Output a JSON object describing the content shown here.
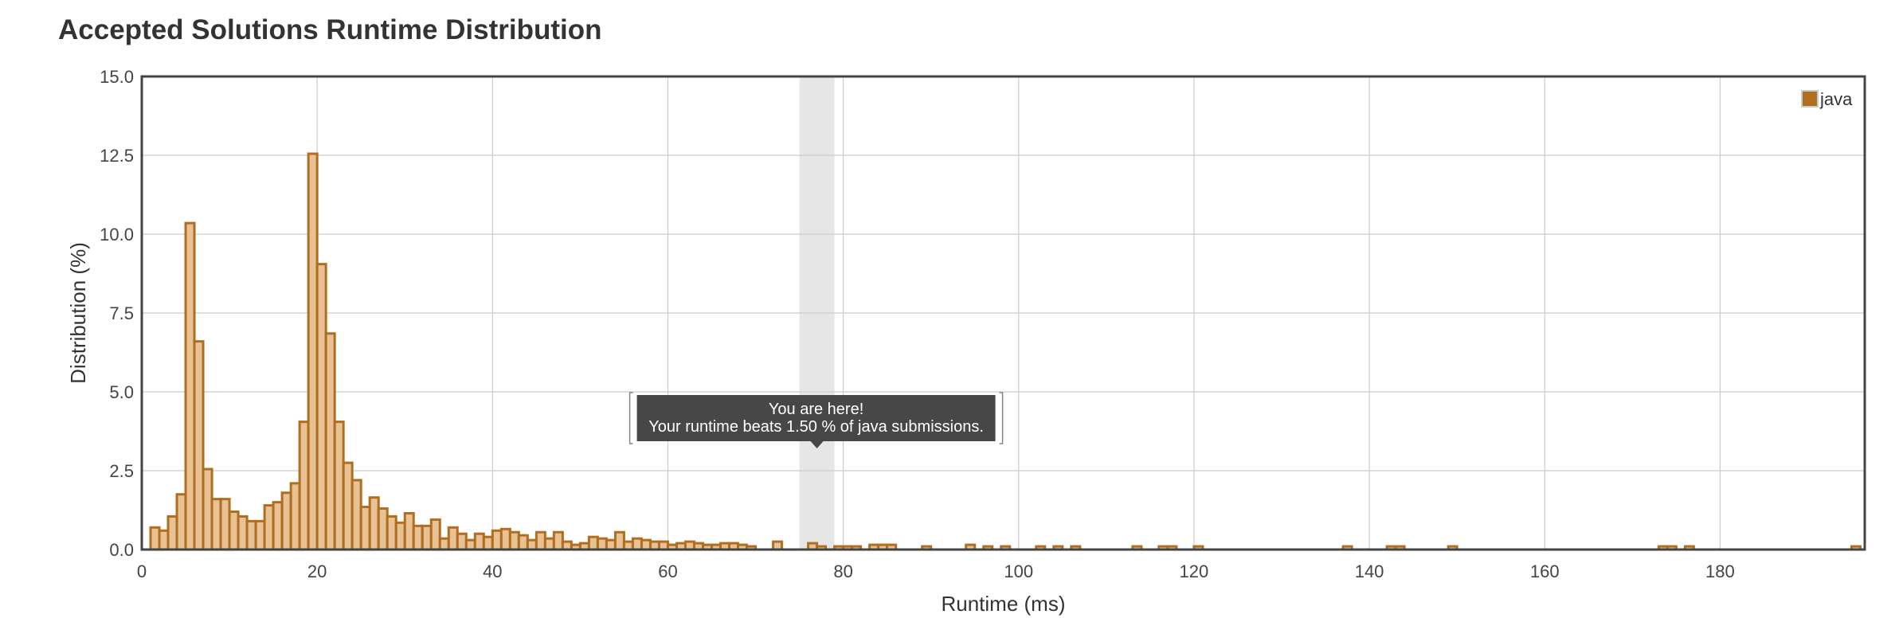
{
  "page": {
    "title": "Accepted Solutions Runtime Distribution"
  },
  "tooltip": {
    "line1": "You are here!",
    "line2": "Your runtime beats 1.50 % of java submissions."
  },
  "colors": {
    "bar_fill": "#e8c295",
    "bar_stroke": "#b06e1e",
    "legend_swatch": "#b06e1e",
    "grid": "#cccccc",
    "frame": "#444444",
    "highlight_band": "#e6e6e6",
    "tooltip_bg": "#474747"
  },
  "chart_data": {
    "type": "bar",
    "title": "Accepted Solutions Runtime Distribution",
    "xlabel": "Runtime (ms)",
    "ylabel": "Distribution (%)",
    "xlim": [
      0,
      196.5
    ],
    "ylim": [
      0,
      15
    ],
    "x_ticks": [
      0,
      20,
      40,
      60,
      80,
      100,
      120,
      140,
      160,
      180
    ],
    "x_tick_labels": [
      "0",
      "20",
      "40",
      "60",
      "80",
      "100",
      "120",
      "140",
      "160",
      "180"
    ],
    "y_ticks": [
      0,
      2.5,
      5,
      7.5,
      10,
      12.5,
      15
    ],
    "y_tick_labels": [
      "0.0",
      "2.5",
      "5.0",
      "7.5",
      "10.0",
      "12.5",
      "15.0"
    ],
    "grid": true,
    "legend_position": "top-right",
    "bin_width_ms": 1,
    "highlight_range_ms": [
      75,
      79
    ],
    "tooltip_anchor_ms": 77,
    "series": [
      {
        "name": "java",
        "x": [
          1,
          2,
          3,
          4,
          5,
          6,
          7,
          8,
          9,
          10,
          11,
          12,
          13,
          14,
          15,
          16,
          17,
          18,
          19,
          20,
          21,
          22,
          23,
          24,
          25,
          26,
          27,
          28,
          29,
          30,
          31,
          32,
          33,
          34,
          35,
          36,
          37,
          38,
          39,
          40,
          41,
          42,
          43,
          44,
          45,
          46,
          47,
          48,
          49,
          50,
          51,
          52,
          53,
          54,
          55,
          56,
          57,
          58,
          59,
          60,
          61,
          62,
          63,
          64,
          65,
          66,
          67,
          68,
          69,
          72,
          76,
          77,
          79,
          80,
          81,
          83,
          84,
          85,
          89,
          94,
          96,
          98,
          102,
          104,
          106,
          113,
          116,
          117,
          120,
          137,
          142,
          143,
          149,
          173,
          174,
          176,
          195
        ],
        "values": [
          0.7,
          0.6,
          1.05,
          1.75,
          10.35,
          6.6,
          2.55,
          1.6,
          1.6,
          1.2,
          1.05,
          0.9,
          0.9,
          1.4,
          1.5,
          1.8,
          2.1,
          4.05,
          12.55,
          9.05,
          6.85,
          4.05,
          2.75,
          2.2,
          1.35,
          1.65,
          1.3,
          1.05,
          0.85,
          1.15,
          0.75,
          0.75,
          0.95,
          0.35,
          0.7,
          0.5,
          0.3,
          0.5,
          0.4,
          0.6,
          0.65,
          0.55,
          0.45,
          0.3,
          0.55,
          0.35,
          0.55,
          0.25,
          0.15,
          0.2,
          0.4,
          0.35,
          0.3,
          0.55,
          0.25,
          0.35,
          0.3,
          0.25,
          0.25,
          0.15,
          0.2,
          0.25,
          0.2,
          0.15,
          0.15,
          0.2,
          0.2,
          0.15,
          0.1,
          0.25,
          0.2,
          0.1,
          0.1,
          0.1,
          0.1,
          0.15,
          0.15,
          0.15,
          0.1,
          0.15,
          0.1,
          0.1,
          0.1,
          0.1,
          0.1,
          0.1,
          0.1,
          0.1,
          0.1,
          0.1,
          0.1,
          0.1,
          0.1,
          0.1,
          0.1,
          0.1,
          0.1
        ]
      }
    ]
  }
}
